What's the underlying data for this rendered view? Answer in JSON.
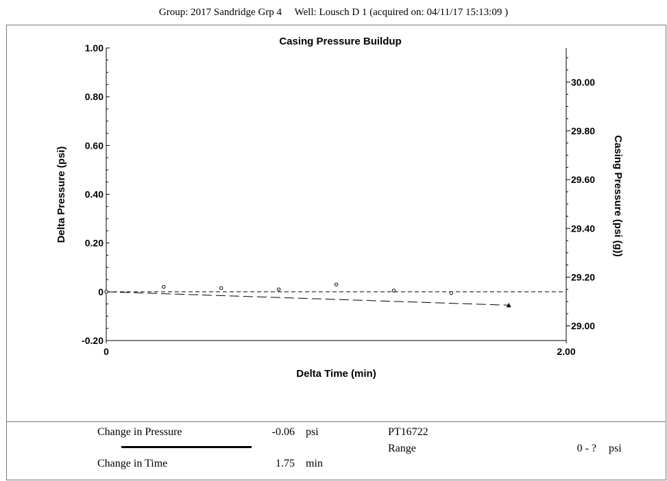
{
  "header": {
    "group_label": "Group:",
    "group_value": "2017 Sandridge Grp 4",
    "well_label": "Well:",
    "well_value": "Lousch D 1",
    "acquired_label": "(acquired on:",
    "acquired_value": "04/11/17 15:13:09",
    "acquired_close": ")"
  },
  "chart_data": {
    "type": "scatter",
    "title": "Casing Pressure Buildup",
    "xlabel": "Delta Time (min)",
    "ylabel": "Delta Pressure (psi)",
    "y2label": "Casing Pressure (psi (g))",
    "xlim": [
      0,
      2.0
    ],
    "ylim": [
      -0.2,
      1.0
    ],
    "y2lim": [
      28.94,
      30.14
    ],
    "x_ticks": [
      0,
      2.0
    ],
    "x_tick_labels": [
      "0",
      "2.00"
    ],
    "y_ticks": [
      -0.2,
      0,
      0.2,
      0.4,
      0.6,
      0.8,
      1.0
    ],
    "y_tick_labels": [
      "-0.20",
      "0",
      "0.20",
      "0.40",
      "0.60",
      "0.80",
      "1.00"
    ],
    "y2_ticks": [
      29.0,
      29.2,
      29.4,
      29.6,
      29.8,
      30.0
    ],
    "y2_tick_labels": [
      "29.00",
      "29.20",
      "29.40",
      "29.60",
      "29.80",
      "30.00"
    ],
    "grid": false,
    "series": [
      {
        "marker": "open-circle",
        "x": [
          0,
          0.25,
          0.5,
          0.75,
          1.0,
          1.25,
          1.5,
          1.75
        ],
        "y": [
          0,
          0.02,
          0.015,
          0.01,
          0.03,
          0.005,
          -0.005,
          -0.055
        ]
      }
    ],
    "reference_lines": [
      {
        "style": "short-dash",
        "x": [
          0,
          2.0
        ],
        "y": [
          0,
          0
        ]
      },
      {
        "style": "long-dash",
        "x": [
          0,
          1.75
        ],
        "y": [
          0,
          -0.055
        ]
      }
    ],
    "end_marker": {
      "shape": "filled-triangle",
      "x": 1.75,
      "y": -0.055
    }
  },
  "footer": {
    "change_pressure_label": "Change in Pressure",
    "change_pressure_value": "-0.06",
    "change_pressure_unit": "psi",
    "change_time_label": "Change in Time",
    "change_time_value": "1.75",
    "change_time_unit": "min",
    "sensor_id": "PT16722",
    "range_label": "Range",
    "range_value": "0 - ?",
    "range_unit": "psi"
  }
}
